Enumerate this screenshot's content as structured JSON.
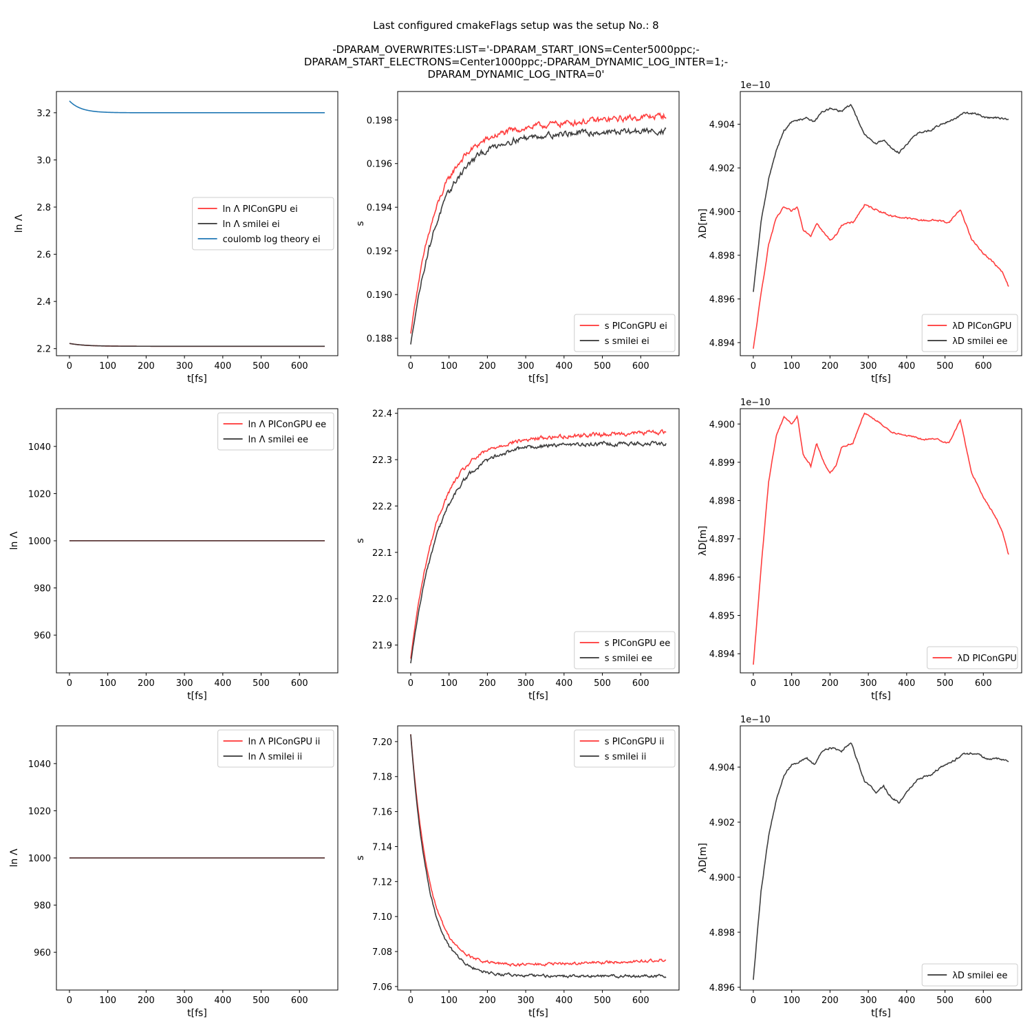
{
  "figure": {
    "title_lines": [
      "Last configured cmakeFlags setup was the setup No.: 8",
      "",
      "-DPARAM_OVERWRITES:LIST='-DPARAM_START_IONS=Center5000ppc;-",
      "DPARAM_START_ELECTRONS=Center1000ppc;-DPARAM_DYNAMIC_LOG_INTER=1;-",
      "DPARAM_DYNAMIC_LOG_INTRA=0'"
    ]
  },
  "chart_data": [
    {
      "type": "line",
      "xlabel": "t[fs]",
      "ylabel": "ln Λ",
      "xlim": [
        -34,
        700
      ],
      "ylim": [
        2.17,
        3.29
      ],
      "xticks": [
        0,
        100,
        200,
        300,
        400,
        500,
        600
      ],
      "yticks": [
        2.2,
        2.4,
        2.6,
        2.8,
        3.0,
        3.2
      ],
      "ytick_labels": [
        "2.2",
        "2.4",
        "2.6",
        "2.8",
        "3.0",
        "3.2"
      ],
      "legend": "center-right",
      "series": [
        {
          "name": "ln Λ PIConGPU ei",
          "color": "#ff3333",
          "shape": "exp",
          "y0": 2.222,
          "yinf": 2.21,
          "tau": 40,
          "noise": 0
        },
        {
          "name": "ln Λ smilei ei",
          "color": "#333333",
          "shape": "exp",
          "y0": 2.222,
          "yinf": 2.21,
          "tau": 40,
          "noise": 0
        },
        {
          "name": "coulomb log theory ei",
          "color": "#1f77b4",
          "shape": "exp",
          "y0": 3.25,
          "yinf": 3.2,
          "tau": 30,
          "noise": 0
        }
      ]
    },
    {
      "type": "line",
      "xlabel": "t[fs]",
      "ylabel": "s",
      "xlim": [
        -34,
        700
      ],
      "ylim": [
        0.1872,
        0.1993
      ],
      "xticks": [
        0,
        100,
        200,
        300,
        400,
        500,
        600
      ],
      "yticks": [
        0.188,
        0.19,
        0.192,
        0.194,
        0.196,
        0.198
      ],
      "ytick_labels": [
        "0.188",
        "0.190",
        "0.192",
        "0.194",
        "0.196",
        "0.198"
      ],
      "legend": "lower-right",
      "series": [
        {
          "name": "s PIConGPU ei",
          "color": "#ff3333",
          "shape": "exp",
          "y0": 0.1882,
          "yinf": 0.1974,
          "tau": 70,
          "drift": 0.0008,
          "noise": 0.00025
        },
        {
          "name": "s smilei ei",
          "color": "#333333",
          "shape": "exp",
          "y0": 0.1877,
          "yinf": 0.1973,
          "tau": 78,
          "drift": 0.0002,
          "noise": 0.00025
        }
      ]
    },
    {
      "type": "line",
      "xlabel": "t[fs]",
      "ylabel": "λD[m]",
      "offset_label": "1e−10",
      "xlim": [
        -34,
        700
      ],
      "ylim": [
        4.8934,
        4.9055
      ],
      "xticks": [
        0,
        100,
        200,
        300,
        400,
        500,
        600
      ],
      "yticks": [
        4.894,
        4.896,
        4.898,
        4.9,
        4.902,
        4.904
      ],
      "ytick_labels": [
        "4.894",
        "4.896",
        "4.898",
        "4.900",
        "4.902",
        "4.904"
      ],
      "legend": "lower-right",
      "series": [
        {
          "name": "λD PIConGPU",
          "color": "#ff3333",
          "shape": "points",
          "noise": 8e-05,
          "points": [
            [
              0,
              4.8937
            ],
            [
              20,
              4.8962
            ],
            [
              40,
              4.8985
            ],
            [
              60,
              4.8997
            ],
            [
              80,
              4.9002
            ],
            [
              100,
              4.9
            ],
            [
              115,
              4.9002
            ],
            [
              130,
              4.8992
            ],
            [
              150,
              4.8989
            ],
            [
              165,
              4.8995
            ],
            [
              180,
              4.8991
            ],
            [
              200,
              4.8987
            ],
            [
              215,
              4.8989
            ],
            [
              230,
              4.8994
            ],
            [
              260,
              4.8995
            ],
            [
              290,
              4.9003
            ],
            [
              320,
              4.9001
            ],
            [
              360,
              4.8998
            ],
            [
              400,
              4.8997
            ],
            [
              440,
              4.8996
            ],
            [
              480,
              4.8996
            ],
            [
              510,
              4.8995
            ],
            [
              540,
              4.9001
            ],
            [
              570,
              4.8987
            ],
            [
              600,
              4.8981
            ],
            [
              630,
              4.8976
            ],
            [
              650,
              4.8972
            ],
            [
              665,
              4.8966
            ]
          ]
        },
        {
          "name": "λD smilei ee",
          "color": "#333333",
          "shape": "points",
          "noise": 8e-05,
          "points": [
            [
              0,
              4.8963
            ],
            [
              20,
              4.8995
            ],
            [
              40,
              4.9015
            ],
            [
              60,
              4.9028
            ],
            [
              80,
              4.9037
            ],
            [
              100,
              4.9041
            ],
            [
              140,
              4.9043
            ],
            [
              160,
              4.9041
            ],
            [
              180,
              4.9046
            ],
            [
              200,
              4.9047
            ],
            [
              230,
              4.9046
            ],
            [
              255,
              4.9049
            ],
            [
              270,
              4.9043
            ],
            [
              290,
              4.9035
            ],
            [
              320,
              4.9031
            ],
            [
              340,
              4.9033
            ],
            [
              360,
              4.9029
            ],
            [
              380,
              4.9027
            ],
            [
              400,
              4.9031
            ],
            [
              430,
              4.9036
            ],
            [
              460,
              4.9037
            ],
            [
              490,
              4.904
            ],
            [
              520,
              4.9042
            ],
            [
              550,
              4.9045
            ],
            [
              580,
              4.9045
            ],
            [
              610,
              4.9043
            ],
            [
              640,
              4.9043
            ],
            [
              665,
              4.9042
            ]
          ]
        }
      ]
    },
    {
      "type": "line",
      "xlabel": "t[fs]",
      "ylabel": "ln Λ",
      "xlim": [
        -34,
        700
      ],
      "ylim": [
        944,
        1056
      ],
      "xticks": [
        0,
        100,
        200,
        300,
        400,
        500,
        600
      ],
      "yticks": [
        960,
        980,
        1000,
        1020,
        1040
      ],
      "ytick_labels": [
        "960",
        "980",
        "1000",
        "1020",
        "1040"
      ],
      "legend": "upper-right",
      "series": [
        {
          "name": "ln Λ PIConGPU ee",
          "color": "#ff3333",
          "shape": "const",
          "y0": 1000,
          "noise": 0
        },
        {
          "name": "ln Λ smilei ee",
          "color": "#333333",
          "shape": "const",
          "y0": 1000,
          "noise": 0
        }
      ]
    },
    {
      "type": "line",
      "xlabel": "t[fs]",
      "ylabel": "s",
      "xlim": [
        -34,
        700
      ],
      "ylim": [
        21.84,
        22.41
      ],
      "xticks": [
        0,
        100,
        200,
        300,
        400,
        500,
        600
      ],
      "yticks": [
        21.9,
        22.0,
        22.1,
        22.2,
        22.3,
        22.4
      ],
      "ytick_labels": [
        "21.9",
        "22.0",
        "22.1",
        "22.2",
        "22.3",
        "22.4"
      ],
      "legend": "lower-right",
      "series": [
        {
          "name": "s PIConGPU ee",
          "color": "#ff3333",
          "shape": "exp",
          "y0": 21.87,
          "yinf": 22.34,
          "tau": 70,
          "drift": 0.02,
          "noise": 0.008
        },
        {
          "name": "s smilei ee",
          "color": "#333333",
          "shape": "exp",
          "y0": 21.86,
          "yinf": 22.335,
          "tau": 78,
          "drift": 0,
          "noise": 0.008
        }
      ]
    },
    {
      "type": "line",
      "xlabel": "t[fs]",
      "ylabel": "λD[m]",
      "offset_label": "1e−10",
      "xlim": [
        -34,
        700
      ],
      "ylim": [
        4.8935,
        4.9004
      ],
      "xticks": [
        0,
        100,
        200,
        300,
        400,
        500,
        600
      ],
      "yticks": [
        4.894,
        4.895,
        4.896,
        4.897,
        4.898,
        4.899,
        4.9
      ],
      "ytick_labels": [
        "4.894",
        "4.895",
        "4.896",
        "4.897",
        "4.898",
        "4.899",
        "4.900"
      ],
      "legend": "lower-right",
      "series": [
        {
          "name": "λD PIConGPU",
          "color": "#ff3333",
          "shape": "points",
          "noise": 4e-05,
          "points": [
            [
              0,
              4.8937
            ],
            [
              20,
              4.8962
            ],
            [
              40,
              4.8985
            ],
            [
              60,
              4.8997
            ],
            [
              80,
              4.9002
            ],
            [
              100,
              4.9
            ],
            [
              115,
              4.9002
            ],
            [
              130,
              4.8992
            ],
            [
              150,
              4.8989
            ],
            [
              165,
              4.8995
            ],
            [
              180,
              4.8991
            ],
            [
              200,
              4.8987
            ],
            [
              215,
              4.8989
            ],
            [
              230,
              4.8994
            ],
            [
              260,
              4.8995
            ],
            [
              290,
              4.9003
            ],
            [
              320,
              4.9001
            ],
            [
              360,
              4.8998
            ],
            [
              400,
              4.8997
            ],
            [
              440,
              4.8996
            ],
            [
              480,
              4.8996
            ],
            [
              510,
              4.8995
            ],
            [
              540,
              4.9001
            ],
            [
              570,
              4.8987
            ],
            [
              600,
              4.8981
            ],
            [
              630,
              4.8976
            ],
            [
              650,
              4.8972
            ],
            [
              665,
              4.8966
            ]
          ]
        }
      ]
    },
    {
      "type": "line",
      "xlabel": "t[fs]",
      "ylabel": "ln Λ",
      "xlim": [
        -34,
        700
      ],
      "ylim": [
        944,
        1056
      ],
      "xticks": [
        0,
        100,
        200,
        300,
        400,
        500,
        600
      ],
      "yticks": [
        960,
        980,
        1000,
        1020,
        1040
      ],
      "ytick_labels": [
        "960",
        "980",
        "1000",
        "1020",
        "1040"
      ],
      "legend": "upper-right",
      "series": [
        {
          "name": "ln Λ PIConGPU ii",
          "color": "#ff3333",
          "shape": "const",
          "y0": 1000,
          "noise": 0
        },
        {
          "name": "ln Λ smilei ii",
          "color": "#333333",
          "shape": "const",
          "y0": 1000,
          "noise": 0
        }
      ]
    },
    {
      "type": "line",
      "xlabel": "t[fs]",
      "ylabel": "s",
      "xlim": [
        -34,
        700
      ],
      "ylim": [
        7.058,
        7.209
      ],
      "xticks": [
        0,
        100,
        200,
        300,
        400,
        500,
        600
      ],
      "yticks": [
        7.06,
        7.08,
        7.1,
        7.12,
        7.14,
        7.16,
        7.18,
        7.2
      ],
      "ytick_labels": [
        "7.06",
        "7.08",
        "7.10",
        "7.12",
        "7.14",
        "7.16",
        "7.18",
        "7.20"
      ],
      "legend": "upper-right",
      "series": [
        {
          "name": "s PIConGPU ii",
          "color": "#ff3333",
          "shape": "exp",
          "y0": 7.204,
          "yinf": 7.07,
          "tau": 50,
          "drift": 0.005,
          "noise": 0.0015
        },
        {
          "name": "s smilei ii",
          "color": "#333333",
          "shape": "exp",
          "y0": 7.204,
          "yinf": 7.066,
          "tau": 48,
          "drift": 0,
          "noise": 0.0015
        }
      ]
    },
    {
      "type": "line",
      "xlabel": "t[fs]",
      "ylabel": "λD[m]",
      "offset_label": "1e−10",
      "xlim": [
        -34,
        700
      ],
      "ylim": [
        4.8959,
        4.9055
      ],
      "xticks": [
        0,
        100,
        200,
        300,
        400,
        500,
        600
      ],
      "yticks": [
        4.896,
        4.898,
        4.9,
        4.902,
        4.904
      ],
      "ytick_labels": [
        "4.896",
        "4.898",
        "4.900",
        "4.902",
        "4.904"
      ],
      "legend": "lower-right",
      "series": [
        {
          "name": "λD smilei ee",
          "color": "#333333",
          "shape": "points",
          "noise": 7e-05,
          "points": [
            [
              0,
              4.8963
            ],
            [
              20,
              4.8995
            ],
            [
              40,
              4.9015
            ],
            [
              60,
              4.9028
            ],
            [
              80,
              4.9037
            ],
            [
              100,
              4.9041
            ],
            [
              140,
              4.9043
            ],
            [
              160,
              4.9041
            ],
            [
              180,
              4.9046
            ],
            [
              200,
              4.9047
            ],
            [
              230,
              4.9046
            ],
            [
              255,
              4.9049
            ],
            [
              270,
              4.9043
            ],
            [
              290,
              4.9035
            ],
            [
              320,
              4.9031
            ],
            [
              340,
              4.9033
            ],
            [
              360,
              4.9029
            ],
            [
              380,
              4.9027
            ],
            [
              400,
              4.9031
            ],
            [
              430,
              4.9036
            ],
            [
              460,
              4.9037
            ],
            [
              490,
              4.904
            ],
            [
              520,
              4.9042
            ],
            [
              550,
              4.9045
            ],
            [
              580,
              4.9045
            ],
            [
              610,
              4.9043
            ],
            [
              640,
              4.9043
            ],
            [
              665,
              4.9042
            ]
          ]
        }
      ]
    }
  ]
}
